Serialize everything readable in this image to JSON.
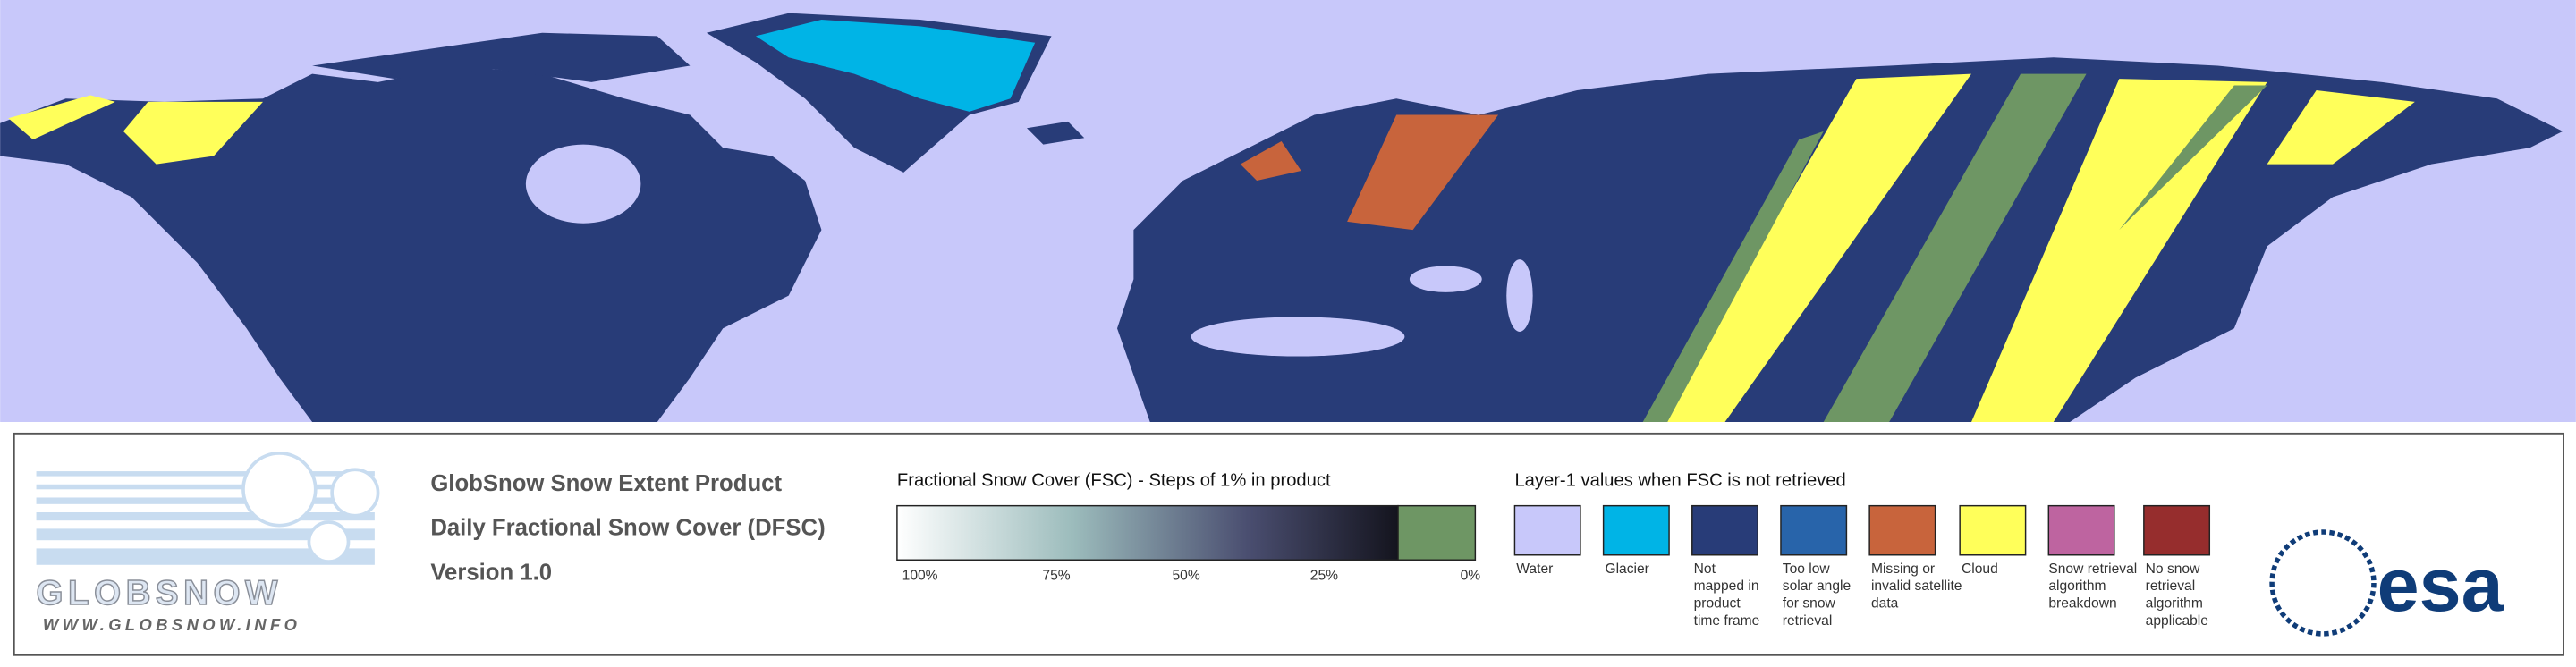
{
  "header": {
    "lines": [
      "GlobSnow Snow Extent Product",
      "Daily Fractional Snow Cover (DFSC)",
      "Version 1.0"
    ]
  },
  "logo": {
    "name": "GLOBSNOW",
    "url": "WWW.GLOBSNOW.INFO"
  },
  "fsc_scale": {
    "title": "Fractional Snow Cover (FSC) - Steps of 1% in product",
    "ticks": [
      "100%",
      "75%",
      "50%",
      "25%",
      "0%"
    ],
    "zero_color": "#6e9664"
  },
  "layer1": {
    "title": "Layer-1 values when FSC is not retrieved",
    "items": [
      {
        "label": [
          "Water"
        ],
        "color": "#c8c8fa"
      },
      {
        "label": [
          "Glacier"
        ],
        "color": "#00b4e6"
      },
      {
        "label": [
          "Not",
          "mapped in",
          "product",
          "time frame"
        ],
        "color": "#283c78"
      },
      {
        "label": [
          "Too low",
          "solar angle",
          "for snow",
          "retrieval"
        ],
        "color": "#2864aa"
      },
      {
        "label": [
          "Missing or",
          "invalid satellite",
          "data"
        ],
        "color": "#c8643c"
      },
      {
        "label": [
          "Cloud"
        ],
        "color": "#ffff5a"
      },
      {
        "label": [
          "Snow retrieval",
          "algorithm",
          "breakdown"
        ],
        "color": "#be64a0"
      },
      {
        "label": [
          "No snow",
          "retrieval",
          "algorithm",
          "applicable"
        ],
        "color": "#962d2d"
      }
    ]
  },
  "agency": {
    "name": "esa"
  }
}
